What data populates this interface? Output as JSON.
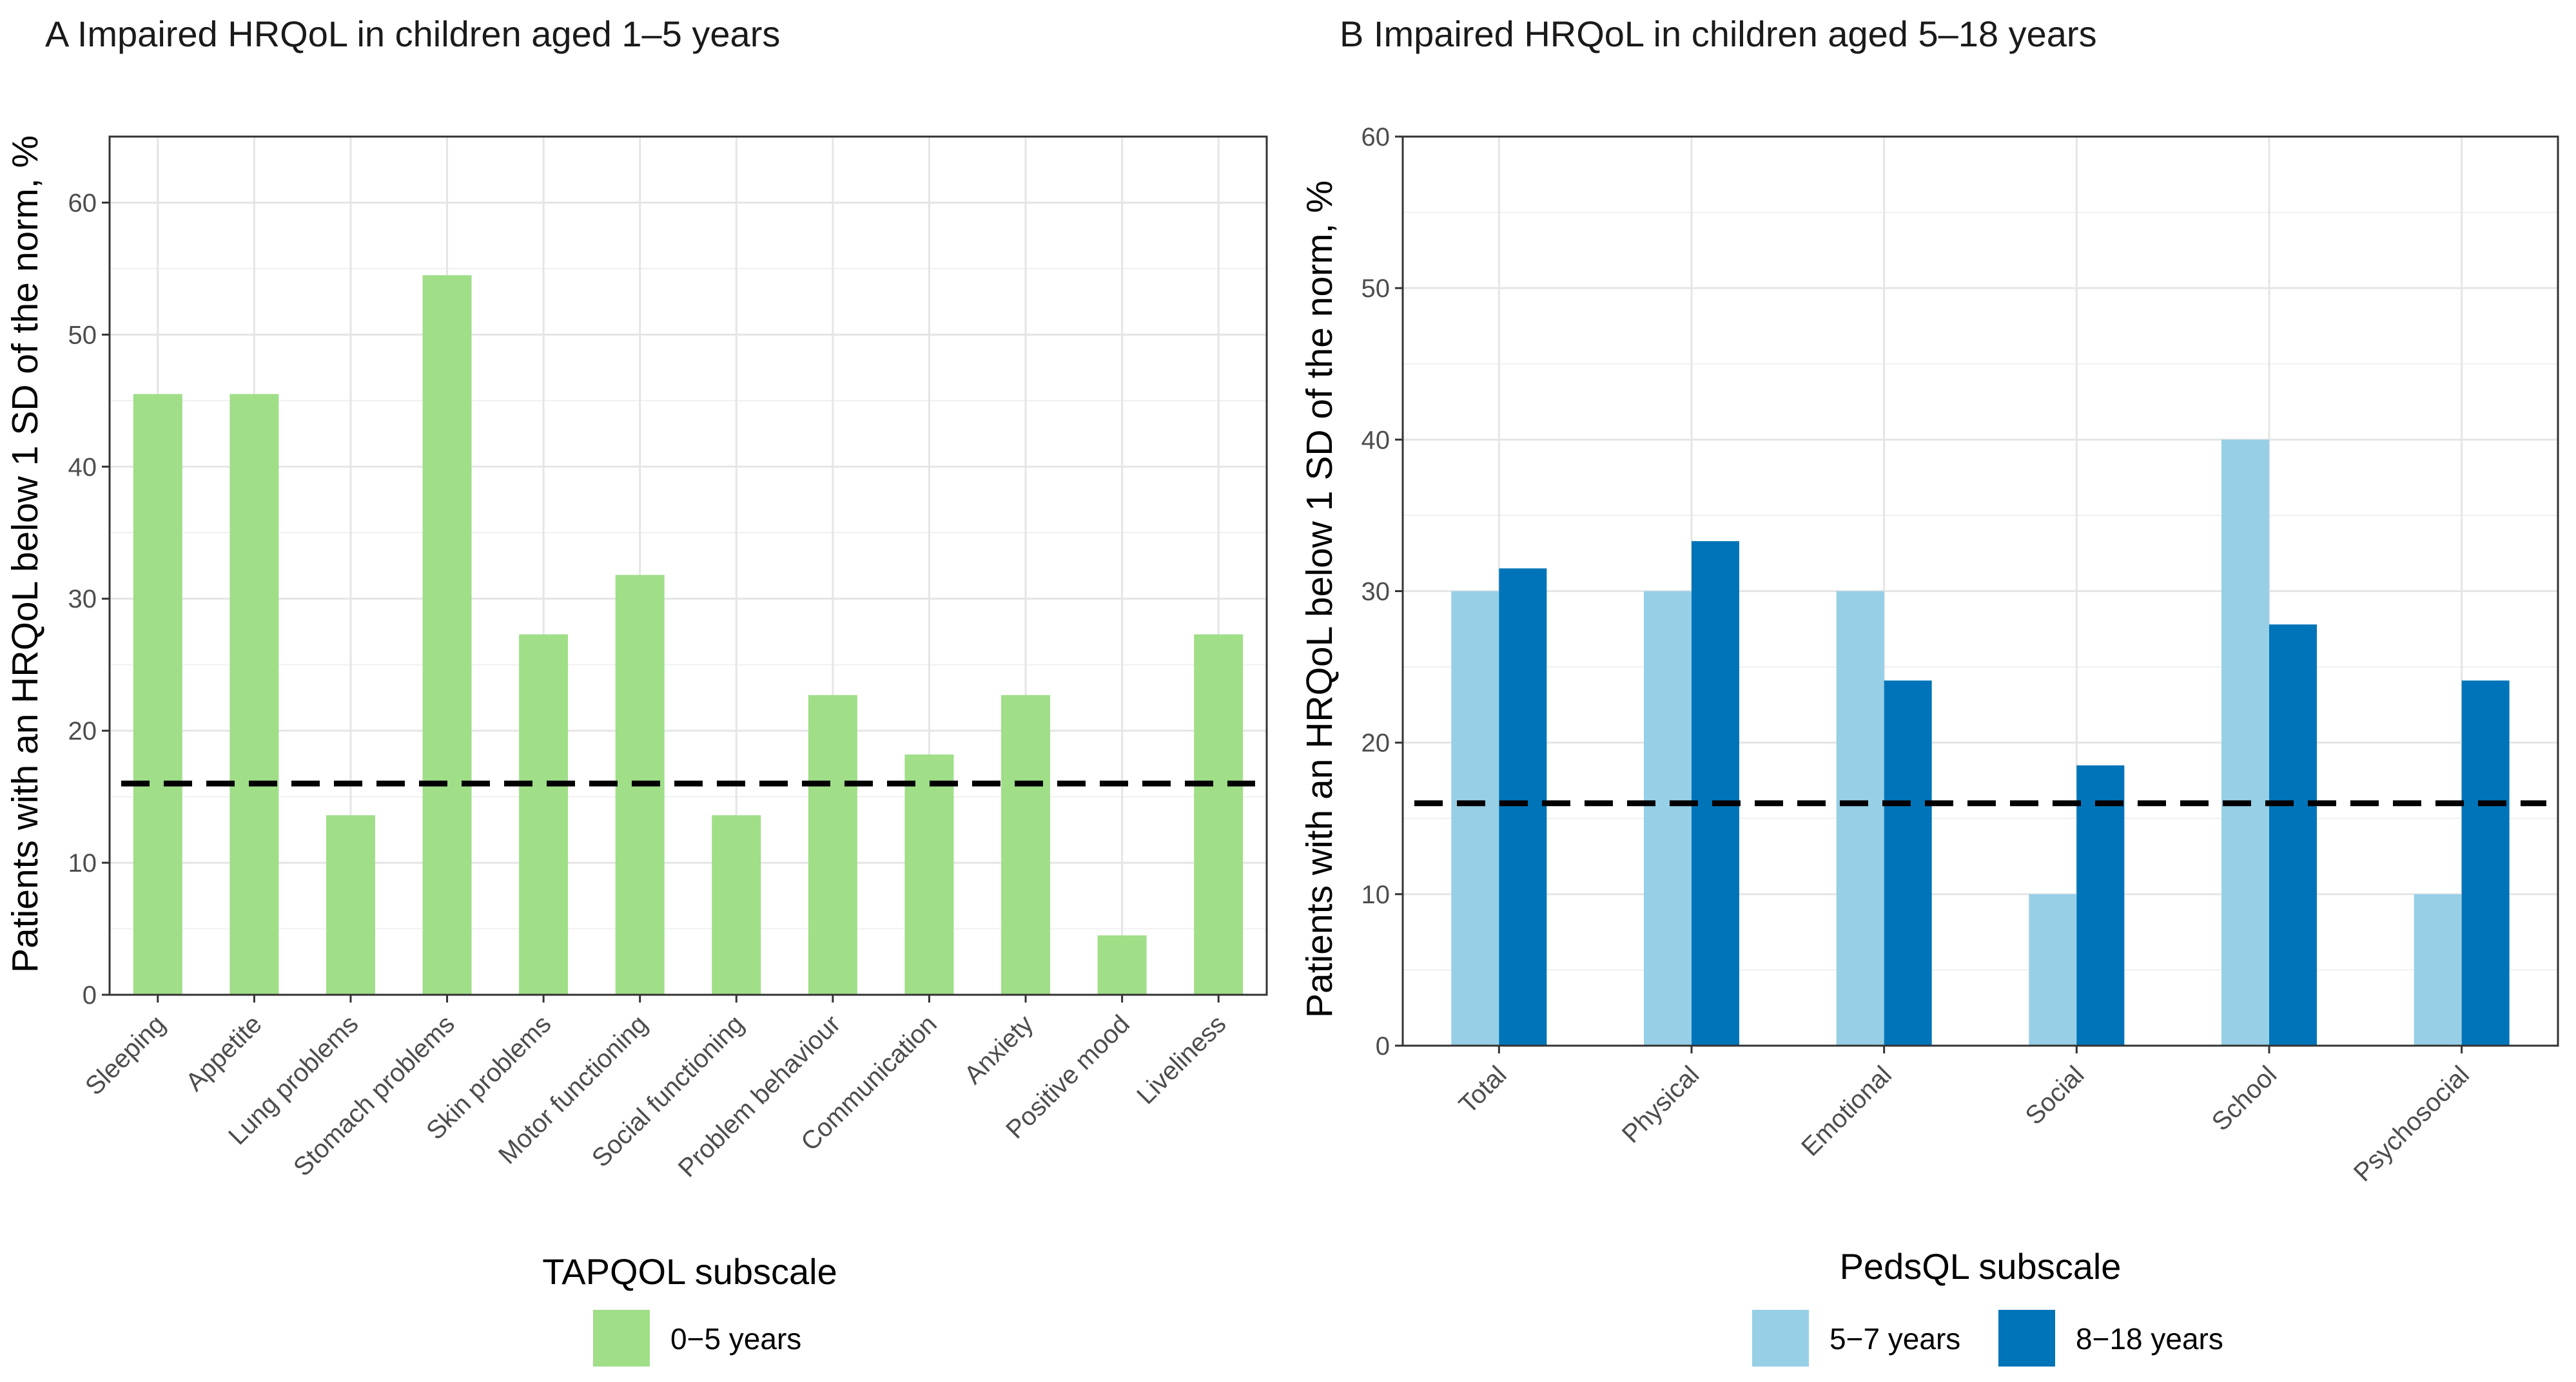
{
  "chart_data": [
    {
      "type": "bar",
      "title": "A Impaired HRQoL in children aged 1–5 years",
      "xlabel": "",
      "ylabel": "Patients with an HRQoL below 1 SD of the norm, %",
      "ylim": [
        0,
        65
      ],
      "yticks": [
        "0",
        "10",
        "20",
        "30",
        "40",
        "50",
        "60"
      ],
      "grid": true,
      "reference_line": 16,
      "categories": [
        "Sleeping",
        "Appetite",
        "Lung problems",
        "Stomach problems",
        "Skin problems",
        "Motor functioning",
        "Social functioning",
        "Problem behaviour",
        "Communication",
        "Anxiety",
        "Positive mood",
        "Liveliness"
      ],
      "series": [
        {
          "name": "0−5 years",
          "color": "#a0de88",
          "values": [
            45.5,
            45.5,
            13.6,
            54.5,
            27.3,
            31.8,
            13.6,
            22.7,
            18.2,
            22.7,
            4.5,
            27.3
          ]
        }
      ],
      "legend": {
        "title": "TAPQOL subscale",
        "position": "bottom"
      }
    },
    {
      "type": "bar",
      "title": "B Impaired HRQoL in children aged 5–18 years",
      "xlabel": "",
      "ylabel": "Patients with an HRQoL below 1 SD of the norm, %",
      "ylim": [
        0,
        60
      ],
      "yticks": [
        "0",
        "10",
        "20",
        "30",
        "40",
        "50",
        "60"
      ],
      "grid": true,
      "reference_line": 16,
      "categories": [
        "Total",
        "Physical",
        "Emotional",
        "Social",
        "School",
        "Psychosocial"
      ],
      "series": [
        {
          "name": "5−7 years",
          "color": "#96cfe6",
          "values": [
            30,
            30,
            30,
            10,
            40,
            10
          ]
        },
        {
          "name": "8−18 years",
          "color": "#0074b8",
          "values": [
            31.5,
            33.3,
            24.1,
            18.5,
            27.8,
            24.1
          ]
        }
      ],
      "legend": {
        "title": "PedsQL subscale",
        "position": "bottom"
      }
    }
  ]
}
